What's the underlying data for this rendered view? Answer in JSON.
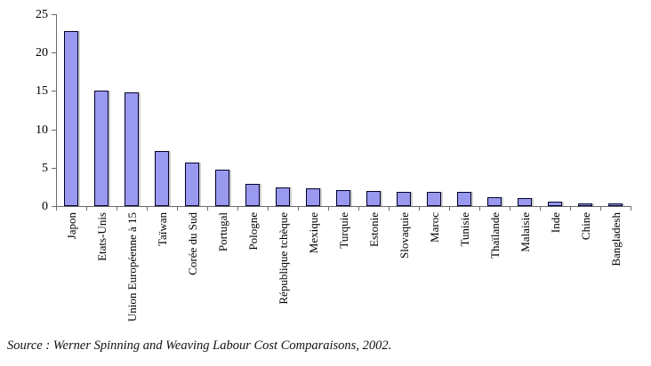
{
  "chart_data": {
    "type": "bar",
    "title": "",
    "xlabel": "",
    "ylabel": "",
    "categories": [
      "Japon",
      "Etats-Unis",
      "Union Européenne à 15",
      "Taïwan",
      "Corée du Sud",
      "Portugal",
      "Pologne",
      "République tchèque",
      "Mexique",
      "Turquie",
      "Estonie",
      "Slovaquie",
      "Maroc",
      "Tunisie",
      "Thaïlande",
      "Malaisie",
      "Inde",
      "Chine",
      "Bangladesh"
    ],
    "values": [
      22.8,
      15.1,
      14.8,
      7.2,
      5.7,
      4.8,
      2.9,
      2.4,
      2.3,
      2.1,
      2.0,
      1.9,
      1.9,
      1.8,
      1.2,
      1.1,
      0.6,
      0.4,
      0.3
    ],
    "ylim": [
      0,
      25
    ],
    "yticks": [
      0,
      5,
      10,
      15,
      20,
      25
    ],
    "grid": false,
    "legend": "none",
    "bar_fill": "#9999F0",
    "bar_border": "#000028",
    "axis_color": "#6b6b6b",
    "source": "Source : Werner Spinning and Weaving Labour Cost Comparaisons, 2002."
  }
}
